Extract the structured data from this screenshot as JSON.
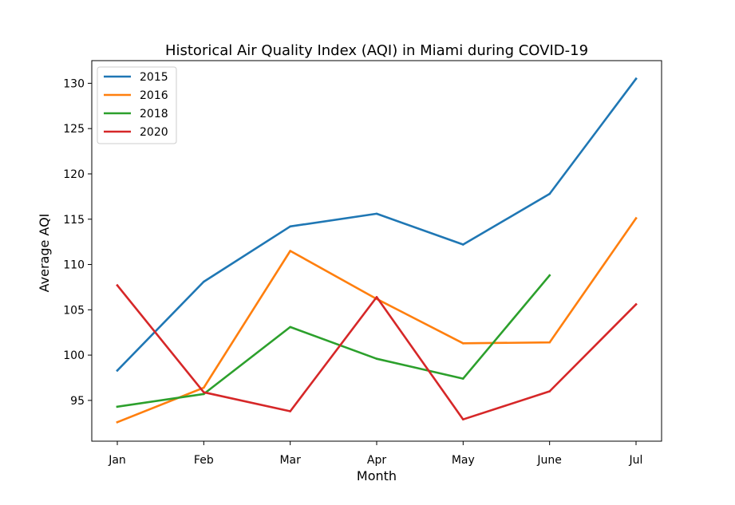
{
  "chart_data": {
    "type": "line",
    "title": "Historical Air Quality Index (AQI) in Miami during COVID-19",
    "xlabel": "Month",
    "ylabel": "Average AQI",
    "categories": [
      "Jan",
      "Feb",
      "Mar",
      "Apr",
      "May",
      "June",
      "Jul"
    ],
    "ylim": [
      90.5,
      132.5
    ],
    "yticks": [
      95,
      100,
      105,
      110,
      115,
      120,
      125,
      130
    ],
    "grid": false,
    "legend_position": "top-left",
    "series": [
      {
        "name": "2015",
        "color": "#1f77b4",
        "values": [
          98.3,
          108.1,
          114.2,
          115.6,
          112.2,
          117.8,
          130.5
        ]
      },
      {
        "name": "2016",
        "color": "#ff7f0e",
        "values": [
          92.6,
          96.4,
          111.5,
          106.2,
          101.3,
          101.4,
          115.1
        ]
      },
      {
        "name": "2018",
        "color": "#2ca02c",
        "values": [
          94.3,
          95.7,
          103.1,
          99.6,
          97.4,
          108.8,
          null
        ]
      },
      {
        "name": "2020",
        "color": "#d62728",
        "values": [
          107.7,
          95.9,
          93.8,
          106.4,
          92.9,
          96.0,
          105.6
        ]
      }
    ]
  }
}
